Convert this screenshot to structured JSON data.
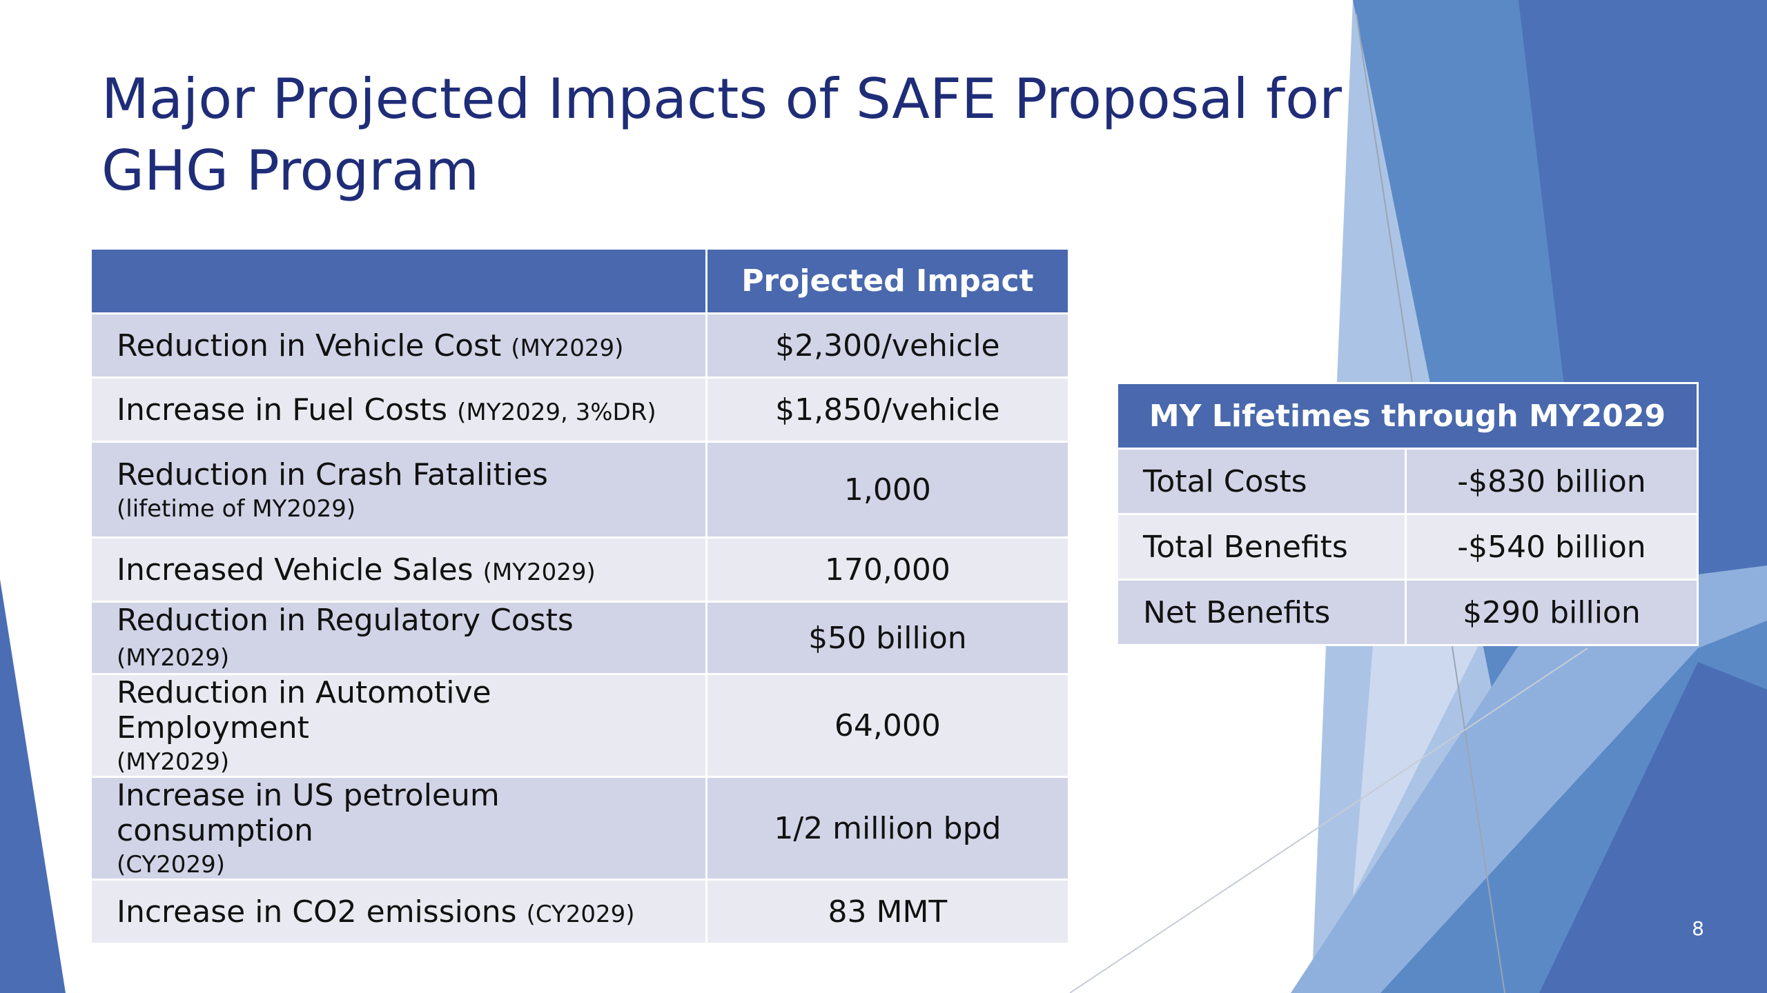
{
  "slide": {
    "title": "Major Projected Impacts of SAFE Proposal for GHG Program",
    "page_number": "8",
    "colors": {
      "title": "#1f2d78",
      "table_header": "#4968ad",
      "row_band_dark": "#d0d4e6",
      "row_band_light": "#e9eaf1",
      "decor_blues": [
        "#4a6db4",
        "#5b89c6",
        "#8fb0dc",
        "#c9d6ee"
      ]
    }
  },
  "impact_table": {
    "header": {
      "label_col": "",
      "value_col": "Projected Impact"
    },
    "rows": [
      {
        "label": "Reduction in Vehicle Cost",
        "note": "(MY2029)",
        "value": "$2,300/vehicle"
      },
      {
        "label": "Increase in Fuel Costs",
        "note": "(MY2029, 3%DR)",
        "value": "$1,850/vehicle"
      },
      {
        "label": "Reduction in Crash Fatalities",
        "note": "(lifetime of MY2029)",
        "value": "1,000"
      },
      {
        "label": "Increased Vehicle Sales",
        "note": "(MY2029)",
        "value": "170,000"
      },
      {
        "label": "Reduction in Regulatory Costs",
        "note": "(MY2029)",
        "value": "$50 billion"
      },
      {
        "label": "Reduction in Automotive Employment",
        "note": "(MY2029)",
        "value": "64,000"
      },
      {
        "label": "Increase in US petroleum consumption",
        "note": "(CY2029)",
        "value": "1/2 million bpd"
      },
      {
        "label": "Increase in CO2 emissions",
        "note": "(CY2029)",
        "value": "83 MMT"
      }
    ]
  },
  "lifetime_table": {
    "header": "MY Lifetimes through MY2029",
    "rows": [
      {
        "label": "Total Costs",
        "value": "-$830 billion"
      },
      {
        "label": "Total Benefits",
        "value": "-$540 billion"
      },
      {
        "label": "Net Benefits",
        "value": "$290 billion"
      }
    ]
  }
}
